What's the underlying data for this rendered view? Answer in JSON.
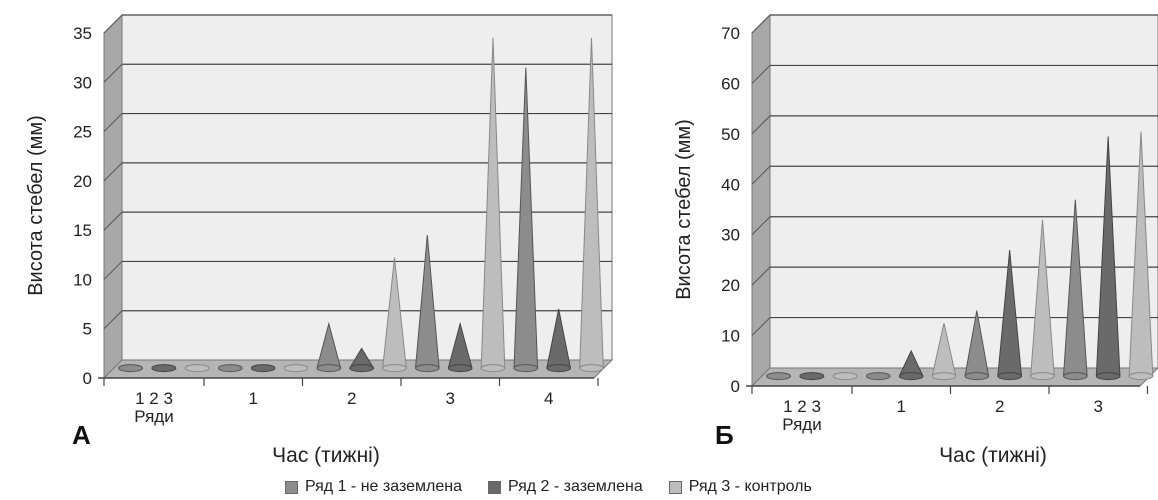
{
  "legend": {
    "items": [
      {
        "label": "Ряд 1 - не заземлена",
        "color": "#8c8c8c"
      },
      {
        "label": "Ряд 2 - заземлена",
        "color": "#6a6a6a"
      },
      {
        "label": "Ряд 3 - контроль",
        "color": "#bdbdbd"
      }
    ]
  },
  "chart_data": [
    {
      "type": "bar",
      "panel_label": "А",
      "xlabel": "Час (тижні)",
      "ylabel": "Висота стебел (мм)",
      "ylim": [
        0,
        35
      ],
      "yticks": [
        "0",
        "5",
        "10",
        "15",
        "20",
        "25",
        "30",
        "35"
      ],
      "categories": [
        "1 2 3\nРяди",
        "1",
        "2",
        "3",
        "4"
      ],
      "grid": true,
      "series": [
        {
          "name": "Ряд 1 - не заземлена",
          "values": [
            0,
            0,
            4.5,
            13.5,
            30.5
          ]
        },
        {
          "name": "Ряд 2 - заземлена",
          "values": [
            0,
            0,
            2,
            4.5,
            6
          ]
        },
        {
          "name": "Ряд 3 - контроль",
          "values": [
            0,
            0,
            11.2,
            33.5,
            33.5
          ]
        }
      ]
    },
    {
      "type": "bar",
      "panel_label": "Б",
      "xlabel": "Час (тижні)",
      "ylabel": "Висота стебел (мм)",
      "ylim": [
        0,
        70
      ],
      "yticks": [
        "0",
        "10",
        "20",
        "30",
        "40",
        "50",
        "60",
        "70"
      ],
      "categories": [
        "1 2 3\nРяди",
        "1",
        "2",
        "3"
      ],
      "grid": true,
      "series": [
        {
          "name": "Ряд 1 - не заземлена",
          "values": [
            0,
            0,
            13,
            35
          ]
        },
        {
          "name": "Ряд 2 - заземлена",
          "values": [
            0,
            5,
            25,
            47.5
          ]
        },
        {
          "name": "Ряд 3 - контроль",
          "values": [
            0,
            10.5,
            31,
            48.5
          ]
        }
      ]
    }
  ]
}
